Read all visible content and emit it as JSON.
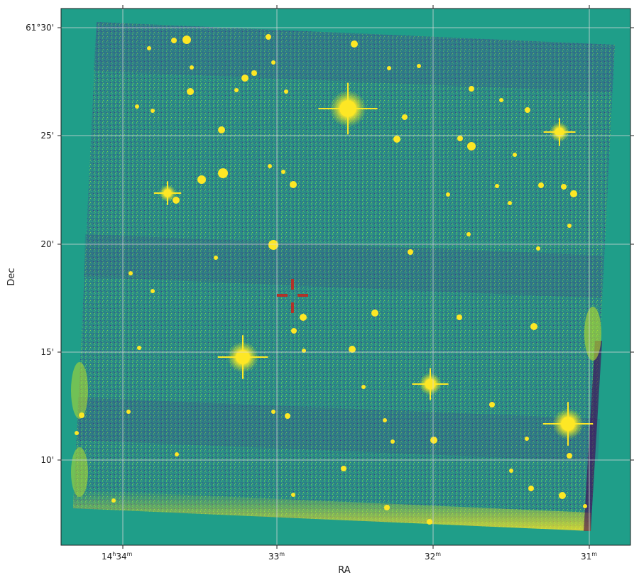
{
  "figure": {
    "x_axis_label": "RA",
    "y_axis_label": "Dec",
    "x_ticks": [
      {
        "hours": "14",
        "minutes": "34",
        "text_main": "14",
        "sup1": "h",
        "text_mid": "34",
        "sup2": "m"
      },
      {
        "text_main": "33",
        "sup2": "m"
      },
      {
        "text_main": "32",
        "sup2": "m"
      },
      {
        "text_main": "31",
        "sup2": "m"
      }
    ],
    "y_ticks": [
      "61°30'",
      "25'",
      "20'",
      "15'",
      "10'"
    ],
    "colors": {
      "background_field": "#1f9e89",
      "image_deep": "#2e3f8a",
      "image_mid": "#2a8a86",
      "image_bright": "#57c26a",
      "star": "#fde725",
      "crosshair": "#b0322b",
      "gridline": "#d9d9d9"
    },
    "bright_stars": [
      {
        "name": "star-a"
      },
      {
        "name": "star-b"
      },
      {
        "name": "star-c"
      },
      {
        "name": "star-d"
      },
      {
        "name": "star-e"
      },
      {
        "name": "star-f"
      }
    ]
  }
}
